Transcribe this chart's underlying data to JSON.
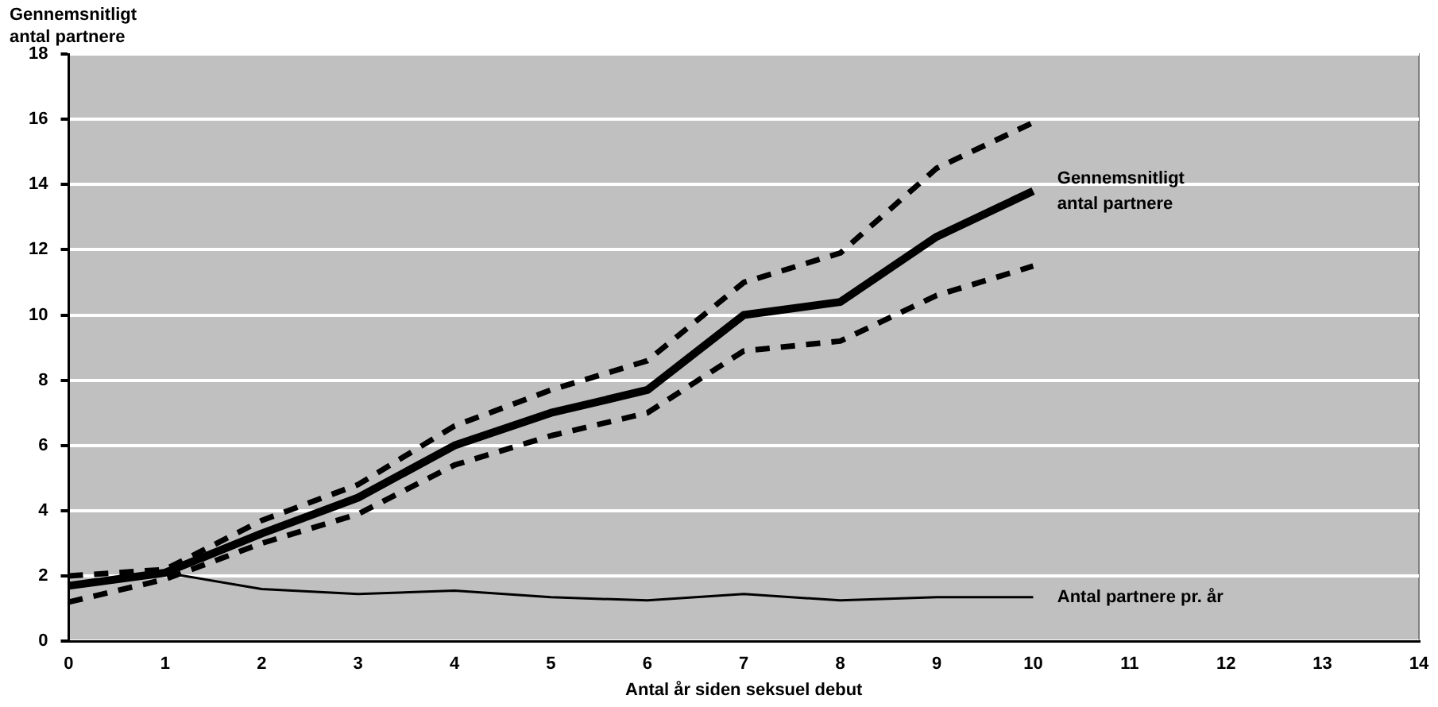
{
  "chart_data": {
    "type": "line",
    "xlabel": "Antal år siden seksuel debut",
    "ylabel": "Gennemsnitligt antal partnere",
    "x": [
      0,
      1,
      2,
      3,
      4,
      5,
      6,
      7,
      8,
      9,
      10
    ],
    "xlim": [
      0,
      14
    ],
    "xticks": [
      0,
      1,
      2,
      3,
      4,
      5,
      6,
      7,
      8,
      9,
      10,
      11,
      12,
      13,
      14
    ],
    "ylim": [
      0,
      18
    ],
    "yticks": [
      0,
      2,
      4,
      6,
      8,
      10,
      12,
      14,
      16,
      18
    ],
    "grid": "y",
    "legend": false,
    "marker": "none",
    "series": [
      {
        "name": "Gennemsnitligt antal partnere",
        "color": "#000000",
        "line_style": "solid",
        "values": [
          1.7,
          2.1,
          3.3,
          4.4,
          6.0,
          7.0,
          7.7,
          10.0,
          10.4,
          12.4,
          13.8
        ]
      },
      {
        "color": "#000000",
        "line_style": "dashed",
        "values": [
          2.0,
          2.2,
          3.7,
          4.8,
          6.6,
          7.7,
          8.6,
          11.0,
          11.9,
          14.5,
          15.9
        ]
      },
      {
        "color": "#000000",
        "line_style": "dashed",
        "values": [
          1.2,
          1.9,
          3.0,
          3.9,
          5.4,
          6.3,
          7.0,
          8.9,
          9.2,
          10.6,
          11.5
        ]
      },
      {
        "name": "Antal partnere pr. år",
        "color": "#000000",
        "line_style": "solid",
        "values": [
          null,
          2.1,
          1.6,
          1.45,
          1.55,
          1.35,
          1.25,
          1.45,
          1.25,
          1.35,
          1.35
        ]
      }
    ]
  }
}
